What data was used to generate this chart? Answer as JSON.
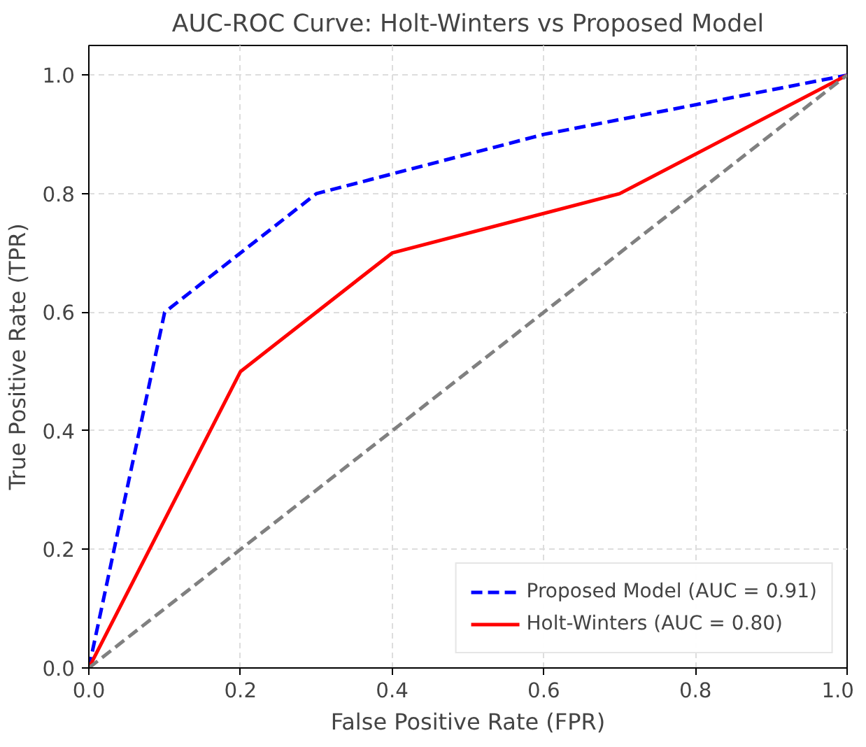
{
  "chart_data": {
    "type": "line",
    "title": "AUC-ROC Curve: Holt-Winters vs Proposed Model",
    "xlabel": "False Positive Rate (FPR)",
    "ylabel": "True Positive Rate (TPR)",
    "xlim": [
      0,
      1
    ],
    "ylim": [
      0,
      1.05
    ],
    "xticks": [
      {
        "value": 0,
        "label": "0.0"
      },
      0.2,
      0.4,
      0.6,
      0.8,
      {
        "value": 1,
        "label": "1.0"
      }
    ],
    "yticks": [
      {
        "value": 0,
        "label": "0.0"
      },
      0.2,
      0.4,
      0.6,
      0.8,
      {
        "value": 1,
        "label": "1.0"
      }
    ],
    "grid": true,
    "legend": "bottom right",
    "marker": "none",
    "series": [
      {
        "name": "Proposed Model (AUC = 0.91)",
        "color": "#0000ff",
        "line_style": "dashed",
        "x": [
          0,
          0.1,
          0.3,
          0.6,
          1
        ],
        "values": [
          0,
          0.6,
          0.8,
          0.9,
          1
        ]
      },
      {
        "name": "Holt-Winters (AUC = 0.80)",
        "color": "#ff0000",
        "line_style": "solid",
        "x": [
          0,
          0.2,
          0.4,
          0.7,
          1
        ],
        "values": [
          0,
          0.5,
          0.7,
          0.8,
          1
        ]
      },
      {
        "color": "#808080",
        "line_style": "dashed",
        "x": [
          0,
          1
        ],
        "values": [
          0,
          1
        ]
      }
    ]
  }
}
